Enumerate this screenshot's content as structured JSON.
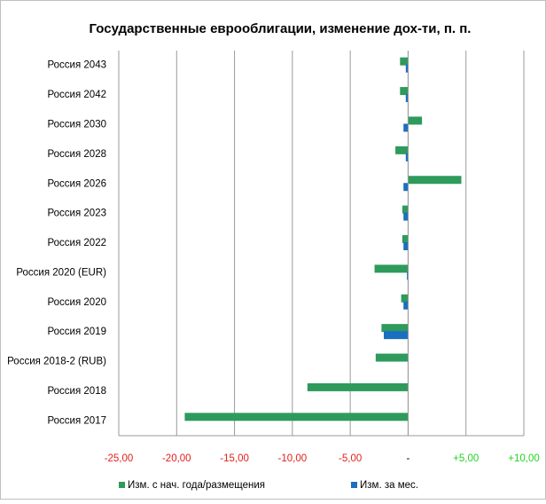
{
  "chart_data": {
    "type": "hbar",
    "title": "Государственные еврооблигации, изменение дох-ти, п. п.",
    "categories": [
      "Россия 2043",
      "Россия 2042",
      "Россия 2030",
      "Россия 2028",
      "Россия 2026",
      "Россия 2023",
      "Россия 2022",
      "Россия 2020 (EUR)",
      "Россия 2020",
      "Россия 2019",
      "Россия 2018-2 (RUB)",
      "Россия 2018",
      "Россия 2017"
    ],
    "series": [
      {
        "name": "Изм. с нач. года/размещения",
        "color": "#2e9a5c",
        "values": [
          -0.7,
          -0.7,
          1.2,
          -1.1,
          4.6,
          -0.5,
          -0.5,
          -2.9,
          -0.6,
          -2.3,
          -2.8,
          -8.7,
          -19.3
        ]
      },
      {
        "name": "Изм. за мес.",
        "color": "#1a6fc0",
        "values": [
          -0.2,
          -0.2,
          -0.4,
          -0.2,
          -0.4,
          -0.4,
          -0.4,
          -0.1,
          -0.4,
          -2.1,
          0,
          0,
          0
        ]
      }
    ],
    "xlim": [
      -25,
      10
    ],
    "xticks": [
      {
        "value": -25,
        "label": "-25,00"
      },
      {
        "value": -20,
        "label": "-20,00"
      },
      {
        "value": -15,
        "label": "-15,00"
      },
      {
        "value": -10,
        "label": "-10,00"
      },
      {
        "value": -5,
        "label": "-5,00"
      },
      {
        "value": 0,
        "label": "-"
      },
      {
        "value": 5,
        "label": "+5,00"
      },
      {
        "value": 10,
        "label": "+10,00"
      }
    ],
    "negative_tick_color": "#e0201b",
    "zero_tick_color": "#000000",
    "positive_tick_color": "#22d422",
    "grid": true,
    "legend": "bottom"
  }
}
